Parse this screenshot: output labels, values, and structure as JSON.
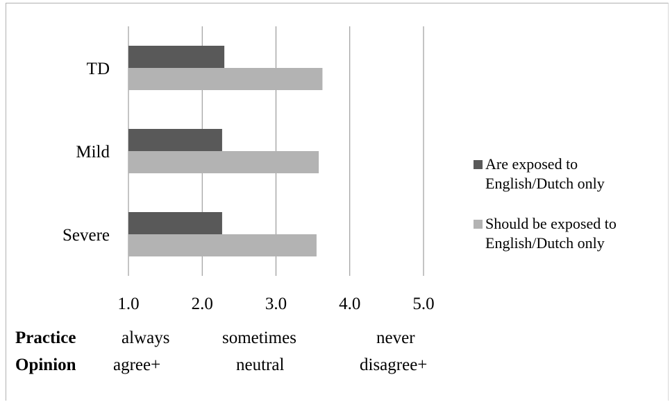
{
  "chart_data": {
    "type": "bar",
    "orientation": "horizontal",
    "categories": [
      "TD",
      "Mild",
      "Severe"
    ],
    "series": [
      {
        "name": "Are exposed to English/Dutch only",
        "values": [
          2.3,
          2.27,
          2.27
        ],
        "color": "#595959"
      },
      {
        "name": "Should be exposed to English/Dutch only",
        "values": [
          3.63,
          3.58,
          3.55
        ],
        "color": "#b3b3b3"
      }
    ],
    "x_ticks": [
      "1.0",
      "2.0",
      "3.0",
      "4.0",
      "5.0"
    ],
    "xlim": [
      1,
      5
    ],
    "grid": true,
    "legend_position": "right"
  },
  "legend": {
    "items": [
      {
        "line1": "Are exposed to",
        "line2": "English/Dutch only"
      },
      {
        "line1": "Should be exposed to",
        "line2": "English/Dutch only"
      }
    ]
  },
  "scale_rows": {
    "practice": {
      "heading": "Practice",
      "low": "always",
      "mid": "sometimes",
      "high": "never"
    },
    "opinion": {
      "heading": "Opinion",
      "low": "agree+",
      "mid": "neutral",
      "high": "disagree+"
    }
  }
}
